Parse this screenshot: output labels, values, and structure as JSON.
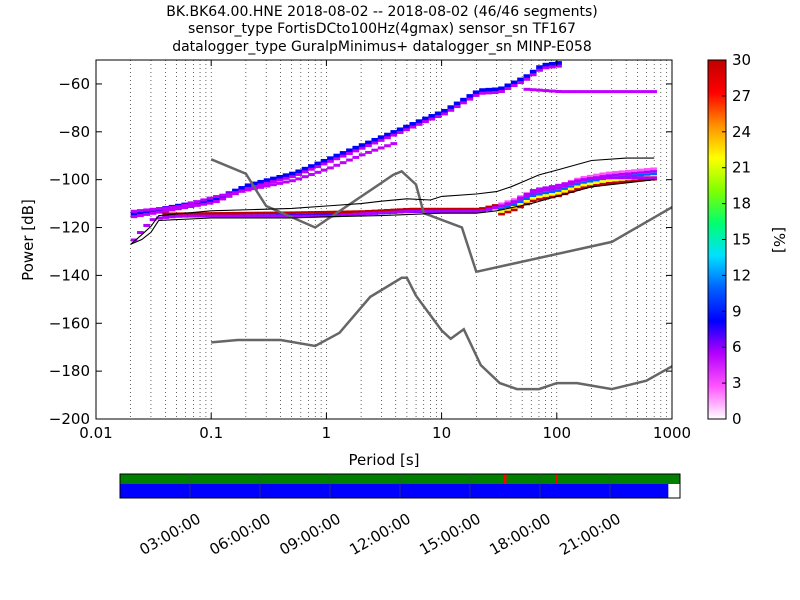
{
  "chart_data": {
    "type": "heatmap",
    "title_lines": [
      "BK.BK64.00.HNE   2018-08-02 -- 2018-08-02  (46/46 segments)",
      "sensor_type FortisDCto100Hz(4gmax) sensor_sn TF167",
      "datalogger_type GuralpMinimus+ datalogger_sn MINP-E058"
    ],
    "xlabel": "Period [s]",
    "ylabel": "Power [dB]",
    "xscale": "log",
    "xlim": [
      0.01,
      1000
    ],
    "ylim": [
      -200,
      -50
    ],
    "x_ticks": [
      {
        "value": 0.01,
        "label": "0.01"
      },
      {
        "value": 0.1,
        "label": "0.1"
      },
      {
        "value": 1,
        "label": "1"
      },
      {
        "value": 10,
        "label": "10"
      },
      {
        "value": 100,
        "label": "100"
      },
      {
        "value": 1000,
        "label": "1000"
      }
    ],
    "y_ticks": [
      {
        "value": -60,
        "label": "−60"
      },
      {
        "value": -80,
        "label": "−80"
      },
      {
        "value": -100,
        "label": "−100"
      },
      {
        "value": -120,
        "label": "−120"
      },
      {
        "value": -140,
        "label": "−140"
      },
      {
        "value": -160,
        "label": "−160"
      },
      {
        "value": -180,
        "label": "−180"
      },
      {
        "value": -200,
        "label": "−200"
      }
    ],
    "grid": "dotted vertical",
    "colorbar": {
      "label": "[%]",
      "min": 0,
      "max": 30,
      "ticks": [
        {
          "value": 0,
          "label": "0"
        },
        {
          "value": 3,
          "label": "3"
        },
        {
          "value": 6,
          "label": "6"
        },
        {
          "value": 9,
          "label": "9"
        },
        {
          "value": 12,
          "label": "12"
        },
        {
          "value": 15,
          "label": "15"
        },
        {
          "value": 18,
          "label": "18"
        },
        {
          "value": 21,
          "label": "21"
        },
        {
          "value": 24,
          "label": "24"
        },
        {
          "value": 27,
          "label": "27"
        },
        {
          "value": 30,
          "label": "30"
        }
      ],
      "colormap": [
        "#ffffff",
        "#ff55ff",
        "#b400ff",
        "#0000ff",
        "#0060ff",
        "#00e0ff",
        "#00ff70",
        "#80ff00",
        "#ffff00",
        "#ff9000",
        "#ff0000",
        "#c00000"
      ]
    },
    "noise_models": [
      {
        "name": "high",
        "color": "#666666",
        "points": [
          [
            0.1,
            -91.5
          ],
          [
            0.2,
            -97.5
          ],
          [
            0.25,
            -105
          ],
          [
            0.3,
            -111
          ],
          [
            0.8,
            -120
          ],
          [
            3.8,
            -98
          ],
          [
            4.5,
            -96.5
          ],
          [
            6,
            -102
          ],
          [
            7,
            -114
          ],
          [
            15,
            -120
          ],
          [
            20,
            -138.5
          ],
          [
            300,
            -126
          ],
          [
            1000,
            -111.5
          ]
        ]
      },
      {
        "name": "low",
        "color": "#666666",
        "points": [
          [
            0.1,
            -168
          ],
          [
            0.17,
            -167
          ],
          [
            0.4,
            -167
          ],
          [
            0.8,
            -169.5
          ],
          [
            1.3,
            -164
          ],
          [
            2.4,
            -149
          ],
          [
            4.5,
            -141
          ],
          [
            5,
            -141
          ],
          [
            6,
            -148.5
          ],
          [
            10,
            -163
          ],
          [
            12,
            -166.5
          ],
          [
            15.6,
            -162.5
          ],
          [
            21.9,
            -177.5
          ],
          [
            32,
            -185
          ],
          [
            45,
            -187.5
          ],
          [
            70,
            -187.5
          ],
          [
            100,
            -185
          ],
          [
            150,
            -185
          ],
          [
            300,
            -187.5
          ],
          [
            600,
            -184
          ],
          [
            1000,
            -178
          ]
        ]
      }
    ],
    "psd_band_lower": [
      [
        0.02,
        -125
      ],
      [
        0.025,
        -119.5
      ],
      [
        0.03,
        -116
      ],
      [
        0.05,
        -115
      ],
      [
        0.1,
        -115
      ],
      [
        0.2,
        -115
      ],
      [
        0.5,
        -115
      ],
      [
        1,
        -115
      ],
      [
        2,
        -114
      ],
      [
        5,
        -113
      ],
      [
        10,
        -113
      ],
      [
        20,
        -113
      ],
      [
        30,
        -111
      ],
      [
        40,
        -109
      ],
      [
        60,
        -104
      ],
      [
        80,
        -103
      ],
      [
        100,
        -102
      ],
      [
        150,
        -100
      ],
      [
        200,
        -99
      ],
      [
        700,
        -99
      ]
    ],
    "psd_band_upper": [
      [
        0.02,
        -114
      ],
      [
        0.1,
        -108
      ],
      [
        0.2,
        -102
      ],
      [
        0.5,
        -97
      ],
      [
        1,
        -91
      ],
      [
        2,
        -85
      ],
      [
        4,
        -79
      ],
      [
        7,
        -74
      ],
      [
        10,
        -71
      ],
      [
        15,
        -66
      ],
      [
        20,
        -62.5
      ],
      [
        30,
        -62
      ],
      [
        50,
        -57
      ],
      [
        70,
        -52
      ],
      [
        100,
        -51
      ]
    ],
    "psd_upper_flat": [
      [
        50,
        -62
      ],
      [
        100,
        -63
      ],
      [
        700,
        -63
      ]
    ],
    "psd_secondary": [
      [
        0.02,
        -113
      ],
      [
        0.05,
        -111
      ],
      [
        0.1,
        -107
      ],
      [
        0.2,
        -104
      ],
      [
        0.5,
        -100
      ],
      [
        1,
        -95
      ],
      [
        2,
        -89
      ],
      [
        3,
        -86
      ],
      [
        4,
        -84
      ]
    ],
    "psd_max_line": [
      [
        0.02,
        -127
      ],
      [
        0.025,
        -123
      ],
      [
        0.03,
        -119.5
      ],
      [
        0.035,
        -115
      ],
      [
        0.1,
        -113
      ],
      [
        0.5,
        -112
      ],
      [
        1,
        -111
      ],
      [
        2,
        -110
      ],
      [
        3,
        -109
      ],
      [
        5,
        -108
      ],
      [
        8,
        -108.5
      ],
      [
        10,
        -107
      ],
      [
        20,
        -106
      ],
      [
        30,
        -105
      ],
      [
        40,
        -103
      ],
      [
        50,
        -101
      ],
      [
        70,
        -98
      ],
      [
        100,
        -96
      ],
      [
        200,
        -92
      ],
      [
        400,
        -91
      ],
      [
        700,
        -91
      ]
    ],
    "psd_min_line": [
      [
        0.02,
        -127
      ],
      [
        0.025,
        -125
      ],
      [
        0.03,
        -122
      ],
      [
        0.035,
        -117
      ],
      [
        0.1,
        -116
      ],
      [
        0.5,
        -116
      ],
      [
        1,
        -115.5
      ],
      [
        3,
        -115
      ],
      [
        10,
        -114
      ],
      [
        20,
        -114
      ],
      [
        30,
        -113
      ],
      [
        60,
        -110
      ],
      [
        100,
        -107
      ],
      [
        200,
        -103
      ],
      [
        700,
        -100
      ]
    ],
    "psd_dense_band": [
      [
        0.035,
        -115
      ],
      [
        0.5,
        -114.5
      ],
      [
        2,
        -114
      ],
      [
        5,
        -113
      ],
      [
        10,
        -113
      ],
      [
        20,
        -113
      ],
      [
        30,
        -111
      ],
      [
        40,
        -109
      ],
      [
        60,
        -105
      ],
      [
        100,
        -103
      ],
      [
        150,
        -100
      ],
      [
        250,
        -98
      ],
      [
        700,
        -96
      ]
    ],
    "timeline": {
      "tick_labels": [
        "03:00:00",
        "06:00:00",
        "09:00:00",
        "12:00:00",
        "15:00:00",
        "18:00:00",
        "21:00:00"
      ],
      "hours": [
        3,
        6,
        9,
        12,
        15,
        18,
        21
      ],
      "range_hours": [
        0,
        24
      ],
      "data_coverage_end_hours": 23.5,
      "gap_markers_hours": [
        16.5,
        18.7
      ],
      "colors": {
        "top": "#008000",
        "bottom": "#0000ff",
        "marker": "#ff0000"
      }
    }
  }
}
